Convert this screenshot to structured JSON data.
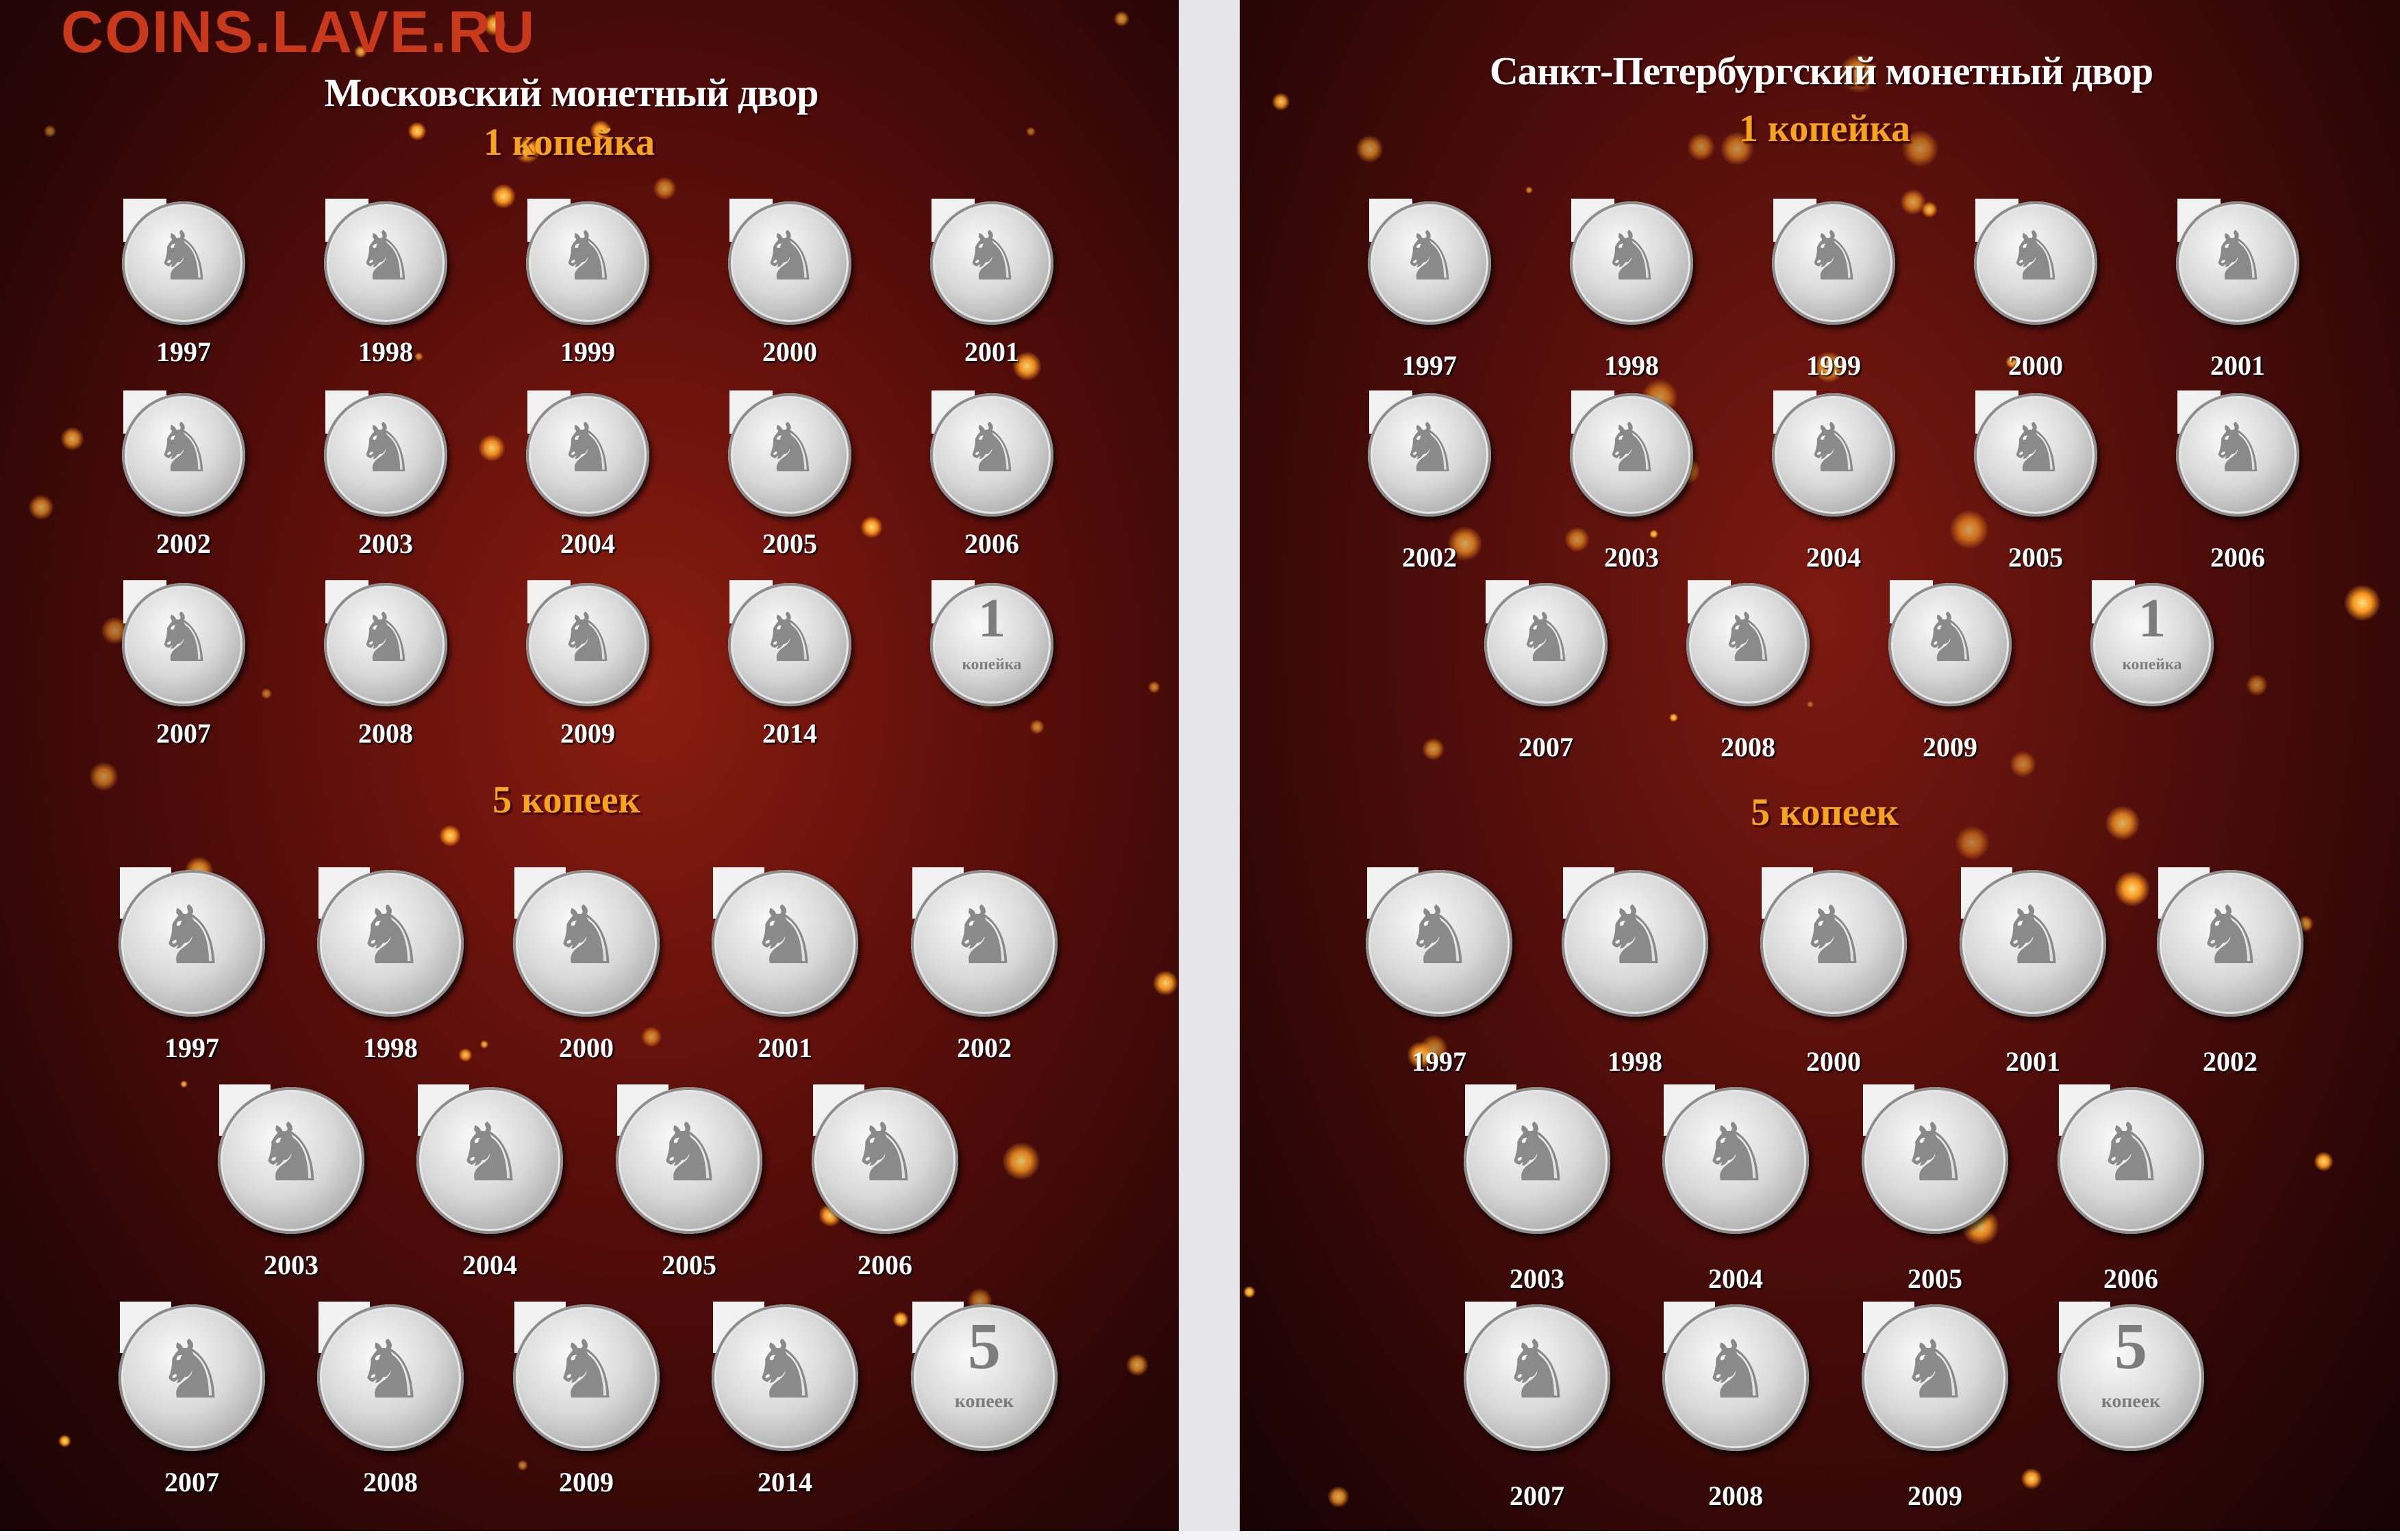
{
  "watermark": "COINS.LAVE.RU",
  "colors": {
    "background": "#5a0e0a",
    "denomination_heading": "#f7a31f",
    "watermark": "#c8381a"
  },
  "pages": [
    {
      "mint_title": "Московский монетный двор",
      "sections": [
        {
          "denomination": "1 копейка",
          "coins": [
            "1997",
            "1998",
            "1999",
            "2000",
            "2001",
            "2002",
            "2003",
            "2004",
            "2005",
            "2006",
            "2007",
            "2008",
            "2009",
            "2014"
          ],
          "reverse": {
            "value": "1",
            "word": "копейка"
          }
        },
        {
          "denomination": "5 копеек",
          "coins": [
            "1997",
            "1998",
            "2000",
            "2001",
            "2002",
            "2003",
            "2004",
            "2005",
            "2006",
            "2007",
            "2008",
            "2009",
            "2014"
          ],
          "reverse": {
            "value": "5",
            "word": "копеек"
          }
        }
      ]
    },
    {
      "mint_title": "Санкт-Петербургский монетный двор",
      "sections": [
        {
          "denomination": "1 копейка",
          "coins": [
            "1997",
            "1998",
            "1999",
            "2000",
            "2001",
            "2002",
            "2003",
            "2004",
            "2005",
            "2006",
            "2007",
            "2008",
            "2009"
          ],
          "reverse": {
            "value": "1",
            "word": "копейка"
          }
        },
        {
          "denomination": "5 копеек",
          "coins": [
            "1997",
            "1998",
            "2000",
            "2001",
            "2002",
            "2003",
            "2004",
            "2005",
            "2006",
            "2007",
            "2008",
            "2009"
          ],
          "reverse": {
            "value": "5",
            "word": "копеек"
          }
        }
      ]
    }
  ]
}
